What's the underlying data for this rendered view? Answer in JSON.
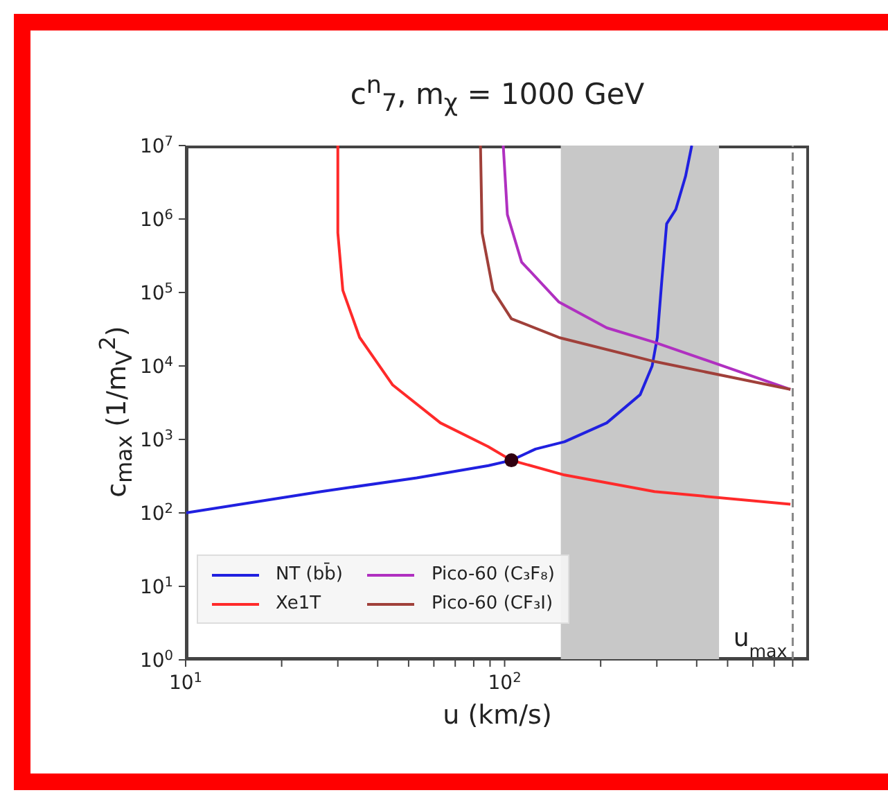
{
  "chart_data": {
    "type": "line",
    "title": "c$^{n}$$_{7}$, m$_{χ}$ = 1000 GeV",
    "xlabel": "u (km/s)",
    "ylabel": "c$_{max}$ (1/m$_{V}$$^{2}$)",
    "log": "xy",
    "grid": false,
    "legend": "bottom left",
    "line_style": "solid",
    "marker": "none",
    "xlim": [
      10,
      900
    ],
    "ylim": [
      1,
      10000000
    ],
    "xticks": [
      {
        "value": 10,
        "label": "10$^{1}$"
      },
      {
        "value": 20,
        "label": null
      },
      {
        "value": 30,
        "label": null
      },
      {
        "value": 40,
        "label": null
      },
      {
        "value": 50,
        "label": null
      },
      {
        "value": 60,
        "label": null
      },
      {
        "value": 70,
        "label": null
      },
      {
        "value": 80,
        "label": null
      },
      {
        "value": 90,
        "label": null
      },
      {
        "value": 100,
        "label": "10$^{2}$"
      },
      {
        "value": 200,
        "label": null
      },
      {
        "value": 300,
        "label": null
      },
      {
        "value": 400,
        "label": null
      },
      {
        "value": 500,
        "label": null
      },
      {
        "value": 600,
        "label": null
      },
      {
        "value": 700,
        "label": null
      },
      {
        "value": 800,
        "label": null
      }
    ],
    "yticks": [
      {
        "value": 1,
        "label": "10$^{0}$"
      },
      {
        "value": 10,
        "label": "10$^{1}$"
      },
      {
        "value": 100,
        "label": "10$^{2}$"
      },
      {
        "value": 1000,
        "label": "10$^{3}$"
      },
      {
        "value": 10000,
        "label": "10$^{4}$"
      },
      {
        "value": 100000,
        "label": "10$^{5}$"
      },
      {
        "value": 1000000,
        "label": "10$^{6}$"
      },
      {
        "value": 10000000,
        "label": "10$^{7}$"
      }
    ],
    "bands": [
      {
        "axis": "x",
        "from": 150,
        "to": 470,
        "color": "#c8c8c8"
      }
    ],
    "ref_lines": [
      {
        "axis": "x",
        "value": 800,
        "label": "u$_{max}$",
        "color": "#888888",
        "line_style": "dashed"
      }
    ],
    "series": [
      {
        "name": "NT (bb̄)",
        "color": "#2020e0",
        "x": [
          10,
          26.6,
          53,
          89,
          105,
          125,
          154,
          209,
          266,
          290,
          301,
          311,
          322,
          344,
          369,
          386
        ],
        "values": [
          100,
          195,
          300,
          440,
          520,
          740,
          930,
          1680,
          4070,
          10000,
          24400,
          146000,
          861000,
          1350000,
          3800000,
          10000000
        ]
      },
      {
        "name": "Xe1T",
        "color": "#ff2a2a",
        "x": [
          30,
          30,
          31.1,
          35.1,
          44.6,
          62.9,
          88.7,
          105,
          154,
          295,
          787
        ],
        "values": [
          10000000,
          650000,
          107000,
          24500,
          5500,
          1680,
          800,
          520,
          328,
          195,
          131
        ]
      },
      {
        "name": "Pico-60 (C₃F₈)",
        "color": "#b030c0",
        "x": [
          99,
          102,
          113,
          148,
          209,
          295,
          787
        ],
        "values": [
          10000000,
          1150000,
          260000,
          74000,
          33000,
          21000,
          4800
        ]
      },
      {
        "name": "Pico-60 (CF₃I)",
        "color": "#a0403a",
        "x": [
          84,
          85,
          92,
          105,
          148,
          295,
          787
        ],
        "values": [
          10000000,
          650000,
          107000,
          44000,
          24400,
          11500,
          4800
        ]
      },
      {
        "type": "scatter",
        "color": "#300010",
        "marker": "circle",
        "x": [
          105
        ],
        "values": [
          520
        ]
      }
    ]
  }
}
